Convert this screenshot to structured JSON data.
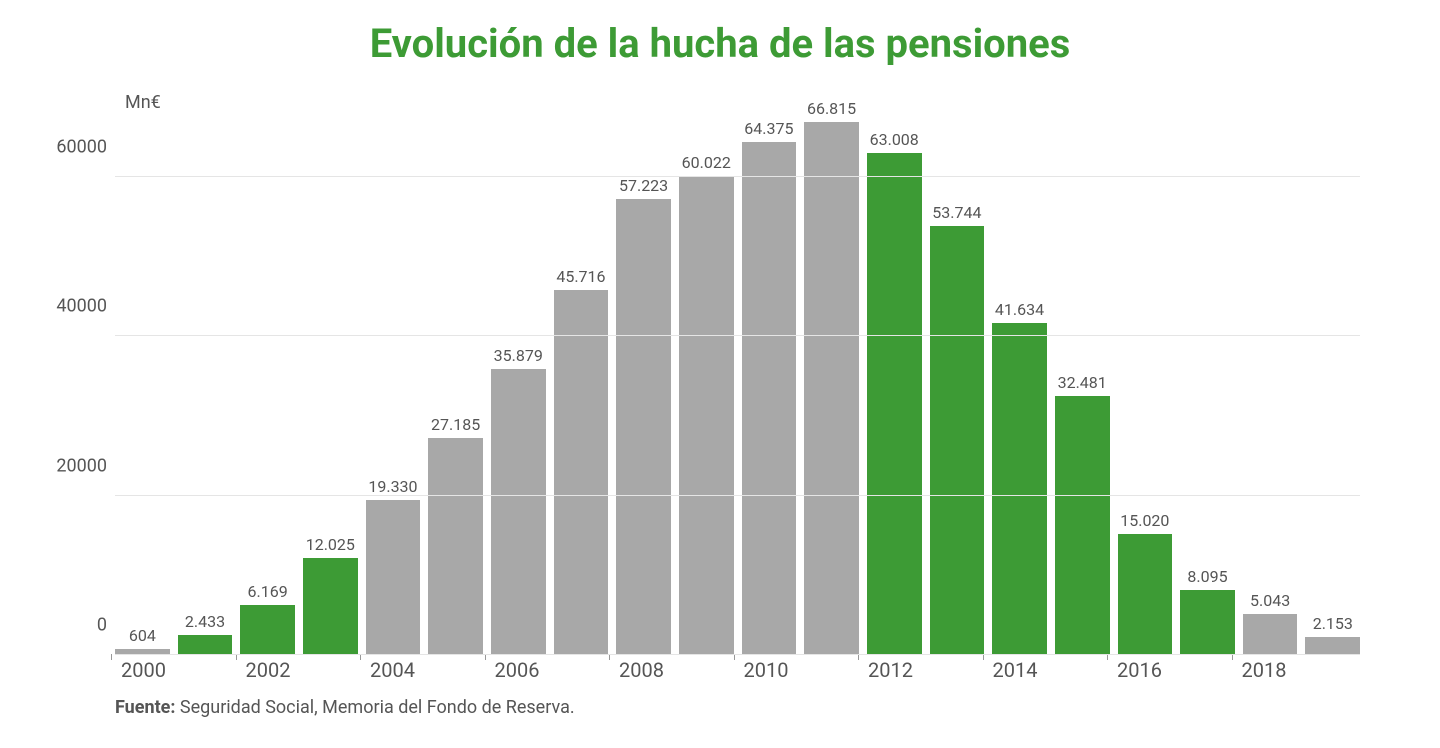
{
  "chart": {
    "type": "bar",
    "title": "Evolución de la hucha de las pensiones",
    "title_color": "#3d9b35",
    "title_fontsize": 40,
    "y_unit": "Mn€",
    "y_unit_fontsize": 18,
    "y_unit_color": "#555555",
    "ylim_max": 70000,
    "yticks": [
      0,
      20000,
      40000,
      60000
    ],
    "ytick_fontsize": 18,
    "ytick_color": "#555555",
    "grid_color": "#e5e5e5",
    "axis_color": "#999999",
    "bar_label_fontsize": 16,
    "bar_label_color": "#555555",
    "x_tick_fontsize": 20,
    "x_tick_color": "#555555",
    "x_labels": [
      "2000",
      "2002",
      "2004",
      "2006",
      "2008",
      "2010",
      "2012",
      "2014",
      "2016",
      "2018"
    ],
    "background_color": "#ffffff",
    "bars": [
      {
        "label": "604",
        "value": 604,
        "color": "#a8a8a8"
      },
      {
        "label": "2.433",
        "value": 2433,
        "color": "#3d9b35"
      },
      {
        "label": "6.169",
        "value": 6169,
        "color": "#3d9b35"
      },
      {
        "label": "12.025",
        "value": 12025,
        "color": "#3d9b35"
      },
      {
        "label": "19.330",
        "value": 19330,
        "color": "#a8a8a8"
      },
      {
        "label": "27.185",
        "value": 27185,
        "color": "#a8a8a8"
      },
      {
        "label": "35.879",
        "value": 35879,
        "color": "#a8a8a8"
      },
      {
        "label": "45.716",
        "value": 45716,
        "color": "#a8a8a8"
      },
      {
        "label": "57.223",
        "value": 57223,
        "color": "#a8a8a8"
      },
      {
        "label": "60.022",
        "value": 60022,
        "color": "#a8a8a8"
      },
      {
        "label": "64.375",
        "value": 64375,
        "color": "#a8a8a8"
      },
      {
        "label": "66.815",
        "value": 66815,
        "color": "#a8a8a8"
      },
      {
        "label": "63.008",
        "value": 63008,
        "color": "#3d9b35"
      },
      {
        "label": "53.744",
        "value": 53744,
        "color": "#3d9b35"
      },
      {
        "label": "41.634",
        "value": 41634,
        "color": "#3d9b35"
      },
      {
        "label": "32.481",
        "value": 32481,
        "color": "#3d9b35"
      },
      {
        "label": "15.020",
        "value": 15020,
        "color": "#3d9b35"
      },
      {
        "label": "8.095",
        "value": 8095,
        "color": "#3d9b35"
      },
      {
        "label": "5.043",
        "value": 5043,
        "color": "#a8a8a8"
      },
      {
        "label": "2.153",
        "value": 2153,
        "color": "#a8a8a8"
      }
    ]
  },
  "source": {
    "label": "Fuente:",
    "text": " Seguridad Social, Memoria del Fondo de Reserva.",
    "fontsize": 18,
    "color": "#555555"
  }
}
